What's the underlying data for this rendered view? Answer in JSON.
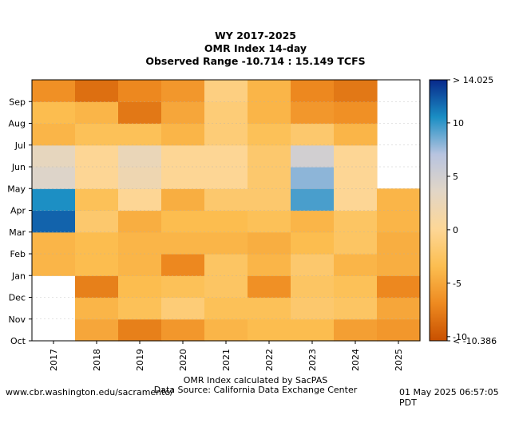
{
  "title_lines": [
    "WY 2017-2025",
    "OMR Index 14-day",
    "Observed Range -10.714 : 15.149 TCFS"
  ],
  "footer": {
    "left": "www.cbr.washington.edu/sacramento/",
    "center_line1": "OMR Index calculated by SacPAS",
    "center_line2": "Data Source: California Data Exchange Center",
    "right": "01 May 2025 06:57:05 PDT"
  },
  "chart_data": {
    "type": "heatmap",
    "x_categories": [
      "2017",
      "2018",
      "2019",
      "2020",
      "2021",
      "2022",
      "2023",
      "2024",
      "2025"
    ],
    "y_categories": [
      "Oct",
      "Nov",
      "Dec",
      "Jan",
      "Feb",
      "Mar",
      "Apr",
      "May",
      "Jun",
      "Jul",
      "Aug",
      "Sep"
    ],
    "y_order": "Oct at bottom, Sep at top",
    "colorbar": {
      "min": -10.386,
      "max": 14.025,
      "ticks": [
        -10,
        -5,
        0,
        5,
        10
      ],
      "min_label": "< -10.386",
      "max_label": "> 14.025",
      "colors": [
        "#c85000",
        "#ee8a20",
        "#fcbe50",
        "#fdd797",
        "#e2d6c6",
        "#b8c4e0",
        "#1a8ec4",
        "#08288a"
      ]
    },
    "months_per_year_values_oct_to_sep": [
      [
        null,
        null,
        null,
        -4,
        -4,
        12,
        10.5,
        4,
        3,
        -4,
        -3.5,
        -6.5
      ],
      [
        -5,
        -4,
        -7.5,
        -3.5,
        -3.5,
        -2,
        -3,
        0,
        0,
        -3,
        -4,
        -8.5
      ],
      [
        -7.5,
        -3,
        -3.5,
        -4,
        -4,
        -4.5,
        0,
        2,
        2.5,
        -3,
        -8,
        -7
      ],
      [
        -6,
        -1.5,
        -3,
        -7,
        -4,
        -3.5,
        -4.5,
        0,
        0,
        -4,
        -5,
        -6
      ],
      [
        -4,
        -3,
        -2.5,
        -2.5,
        -4,
        -3.5,
        -2,
        0,
        0,
        -1.5,
        -1.5,
        -1
      ],
      [
        -3.5,
        -3,
        -6.5,
        -4,
        -4.5,
        -3,
        -2,
        -2,
        -2,
        -3,
        -4,
        -4
      ],
      [
        -3.5,
        -2,
        -2.5,
        -2,
        -3.5,
        -4,
        9.5,
        8,
        5,
        -2,
        -6,
        -7
      ],
      [
        -5.5,
        -2.5,
        -3,
        -4,
        -2.5,
        -2.5,
        0,
        0,
        0,
        -4,
        -6.5,
        -8
      ],
      [
        -6,
        -5,
        -7,
        -4.5,
        -4.5,
        -4,
        -4,
        null,
        null,
        null,
        null,
        null
      ]
    ]
  }
}
